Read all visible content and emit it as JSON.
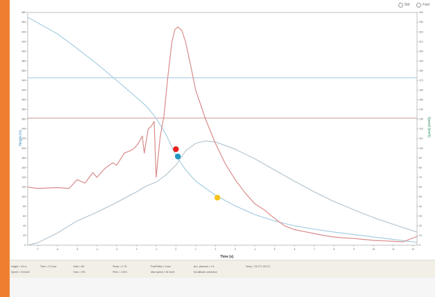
{
  "colors": {
    "accent": "#ef7f2f",
    "height_series": "#a6cde0",
    "speed_series": "#d98a8a",
    "gray_series": "#b6c6d0",
    "blue_hline": "#9dc6de",
    "red_hline": "#cf9090",
    "marker_red": "#e8211e",
    "marker_blue": "#1e95c2",
    "marker_yellow": "#f5c51c",
    "left_axis_label": "#3b8fc0",
    "right_axis_label": "#2a8f60"
  },
  "toolbar": {
    "option1_label": "Std",
    "option2_label": "Fast"
  },
  "status": [
    [
      "Height = 44 m",
      "Time = 0.3 sec",
      "Hold = 86",
      "Pmax = 2.75",
      "Pos/Paths = 5 sec",
      "Acc. planned = 2 h",
      "Temp = 23.2°C  25.3°C"
    ],
    [
      "Speed = 20 km/h",
      "",
      "Grav = 9%",
      "Pmin = 2.8%",
      "Max speed = 51 km/h",
      "No altitude correction",
      ""
    ]
  ],
  "chart_data": {
    "type": "line",
    "title": "",
    "xlabel": "Time (s)",
    "ylabel_left": "Height (m)",
    "ylabel_right": "Speed (km/h)",
    "xlim": [
      -7.5,
      12.2
    ],
    "x_ticks": [
      -7,
      -6,
      -5,
      -4,
      -3,
      -2,
      -1,
      0,
      1,
      2,
      3,
      4,
      5,
      6,
      7,
      8,
      9,
      10,
      11,
      12
    ],
    "ylim_left": [
      0,
      480
    ],
    "y_ticks_left": [
      0,
      20,
      40,
      60,
      80,
      100,
      120,
      140,
      160,
      180,
      200,
      220,
      240,
      260,
      280,
      300,
      320,
      340,
      360,
      380,
      400,
      420,
      440,
      460,
      480
    ],
    "ylim_right": [
      0,
      240
    ],
    "y_ticks_right": [
      0,
      10,
      20,
      30,
      40,
      50,
      60,
      70,
      80,
      90,
      100,
      110,
      120,
      130,
      140,
      150,
      160,
      170,
      180,
      190,
      200,
      210,
      220,
      230,
      240
    ],
    "grid": false,
    "hlines_left": [
      {
        "color_key": "blue_hline",
        "y": 345
      },
      {
        "color_key": "red_hline",
        "y": 262
      }
    ],
    "series": [
      {
        "axis": "left",
        "color_key": "height_series",
        "x": [
          -7.5,
          -6,
          -5,
          -4,
          -3,
          -2,
          -1.5,
          -1,
          -0.5,
          0,
          0.5,
          1,
          2,
          3,
          4,
          5,
          6,
          7,
          8,
          9,
          10,
          11,
          12.2
        ],
        "y": [
          470,
          436,
          406,
          374,
          340,
          305,
          287,
          262,
          228,
          185,
          155,
          132,
          103,
          81,
          63,
          50,
          40,
          33,
          27,
          22,
          17,
          12,
          6
        ]
      },
      {
        "axis": "left",
        "color_key": "gray_series",
        "x": [
          -7.5,
          -7,
          -6,
          -5,
          -4,
          -3,
          -2,
          -1.5,
          -1,
          -0.5,
          0,
          0.5,
          1,
          1.5,
          2,
          3,
          4,
          5,
          6,
          7,
          8,
          9,
          10,
          11,
          12.2
        ],
        "y": [
          0,
          5,
          25,
          50,
          68,
          88,
          110,
          122,
          130,
          145,
          165,
          195,
          210,
          215,
          213,
          198,
          178,
          155,
          132,
          110,
          90,
          73,
          57,
          43,
          27
        ]
      },
      {
        "axis": "left",
        "color_key": "speed_series",
        "x": [
          -7.5,
          -7,
          -6,
          -5.4,
          -5,
          -4.6,
          -4.2,
          -4,
          -3.6,
          -3.2,
          -3,
          -2.6,
          -2.3,
          -2.1,
          -1.9,
          -1.7,
          -1.6,
          -1.4,
          -1.25,
          -1.1,
          -1,
          -0.8,
          -0.6,
          -0.4,
          -0.2,
          -0.05,
          0.1,
          0.3,
          0.5,
          0.8,
          1.0,
          1.5,
          2.0,
          2.5,
          3.0,
          3.5,
          4.0,
          4.5,
          5.0,
          5.5,
          6.0,
          6.5,
          7.0,
          7.5,
          8.0,
          8.5,
          9.0,
          9.5,
          10.0,
          10.5,
          11.0,
          11.5,
          12.0,
          12.2
        ],
        "y": [
          120,
          117,
          119,
          117,
          135,
          128,
          150,
          140,
          158,
          170,
          165,
          190,
          195,
          200,
          210,
          225,
          190,
          240,
          245,
          255,
          140,
          222,
          268,
          350,
          420,
          445,
          450,
          443,
          418,
          360,
          320,
          260,
          210,
          168,
          135,
          108,
          85,
          72,
          55,
          40,
          32,
          28,
          24,
          20,
          17,
          15,
          14,
          12,
          10,
          9,
          8,
          7,
          15,
          18
        ]
      }
    ],
    "markers": [
      {
        "color_key": "marker_red",
        "x": 0,
        "y": 198
      },
      {
        "color_key": "marker_blue",
        "x": 0.1,
        "y": 183
      },
      {
        "color_key": "marker_yellow",
        "x": 2.1,
        "y": 98
      }
    ]
  }
}
